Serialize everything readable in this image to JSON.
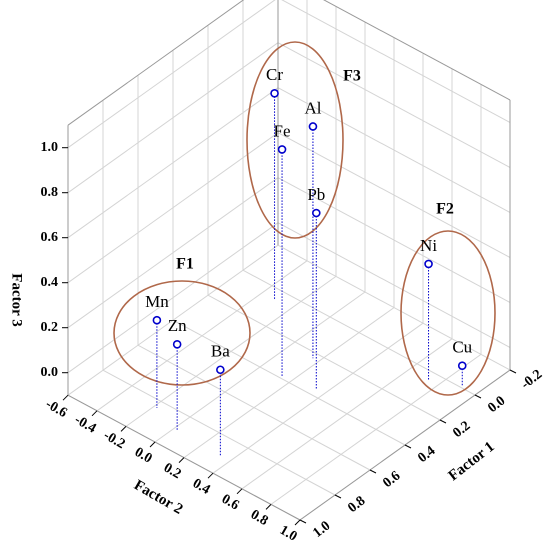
{
  "chart_data": {
    "type": "scatter3d",
    "labels": [
      "Mn",
      "Zn",
      "Ba",
      "Cr",
      "Fe",
      "Al",
      "Pb",
      "Ni",
      "Cu"
    ],
    "x": [
      0.84,
      0.89,
      0.9,
      0.06,
      0.39,
      0.23,
      0.36,
      0.05,
      -0.01
    ],
    "y": [
      -0.18,
      0.02,
      0.33,
      -0.31,
      0.14,
      0.16,
      0.34,
      0.74,
      0.9
    ],
    "z": [
      0.29,
      0.28,
      0.28,
      0.82,
      0.91,
      0.93,
      0.68,
      0.42,
      -0.01
    ],
    "color": "#0000cc",
    "xlabel": "Factor 1",
    "ylabel": "Factor 2",
    "zlabel": "Factor 3",
    "xlim": [
      -0.2,
      1.0
    ],
    "ylim": [
      -0.6,
      1.0
    ],
    "zlim": [
      -0.1,
      1.1
    ],
    "xticks": [
      -0.2,
      {
        "value": 0,
        "label": "0.0"
      },
      0.2,
      0.4,
      0.6,
      0.8,
      {
        "value": 1,
        "label": "1.0"
      }
    ],
    "yticks": [
      -0.6,
      -0.4,
      -0.2,
      {
        "value": 0,
        "label": "0.0"
      },
      0.2,
      0.4,
      0.6,
      0.8,
      {
        "value": 1,
        "label": "1.0"
      }
    ],
    "zticks": [
      {
        "value": 0,
        "label": "0.0"
      },
      0.2,
      0.4,
      0.6,
      0.8,
      {
        "value": 1,
        "label": "1.0"
      }
    ],
    "grid": true,
    "annotations": [
      "F1",
      "F2",
      "F3"
    ]
  }
}
